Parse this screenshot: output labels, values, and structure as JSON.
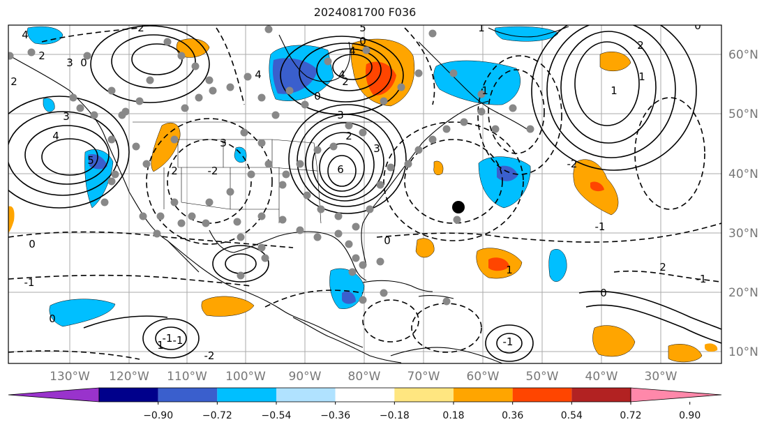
{
  "title": "2024081700 F036",
  "lon_labels": [
    "130°W",
    "120°W",
    "110°W",
    "100°W",
    "90°W",
    "80°W",
    "70°W",
    "60°W",
    "50°W",
    "40°W",
    "30°W"
  ],
  "lat_labels": [
    "60°N",
    "50°N",
    "40°N",
    "30°N",
    "20°N",
    "10°N"
  ],
  "colorbar": {
    "ticks": [
      "−0.90",
      "−0.72",
      "−0.54",
      "−0.36",
      "−0.18",
      "0.18",
      "0.36",
      "0.54",
      "0.72",
      "0.90"
    ],
    "colors": [
      "#9933cc",
      "#00008b",
      "#3a5fcd",
      "#00bfff",
      "#b0e2ff",
      "#ffffff",
      "#ffe680",
      "#ffa500",
      "#ff4500",
      "#b22222",
      "#ff88aa"
    ]
  },
  "contour_labels": [
    "4",
    "2",
    "3",
    "2",
    "0",
    "2",
    "3",
    "4",
    "5",
    "4",
    "2",
    "0",
    "5",
    "4",
    "3",
    "2",
    "3",
    "4",
    "-2",
    "2",
    "0",
    "6",
    "3",
    "0",
    "0",
    "1",
    "1",
    "0",
    "2",
    "1",
    "-1",
    "1",
    "1",
    "-1",
    "-2",
    "-1",
    "0",
    "-1",
    "1",
    "-1",
    "-2",
    "0",
    "2",
    "-1"
  ]
}
